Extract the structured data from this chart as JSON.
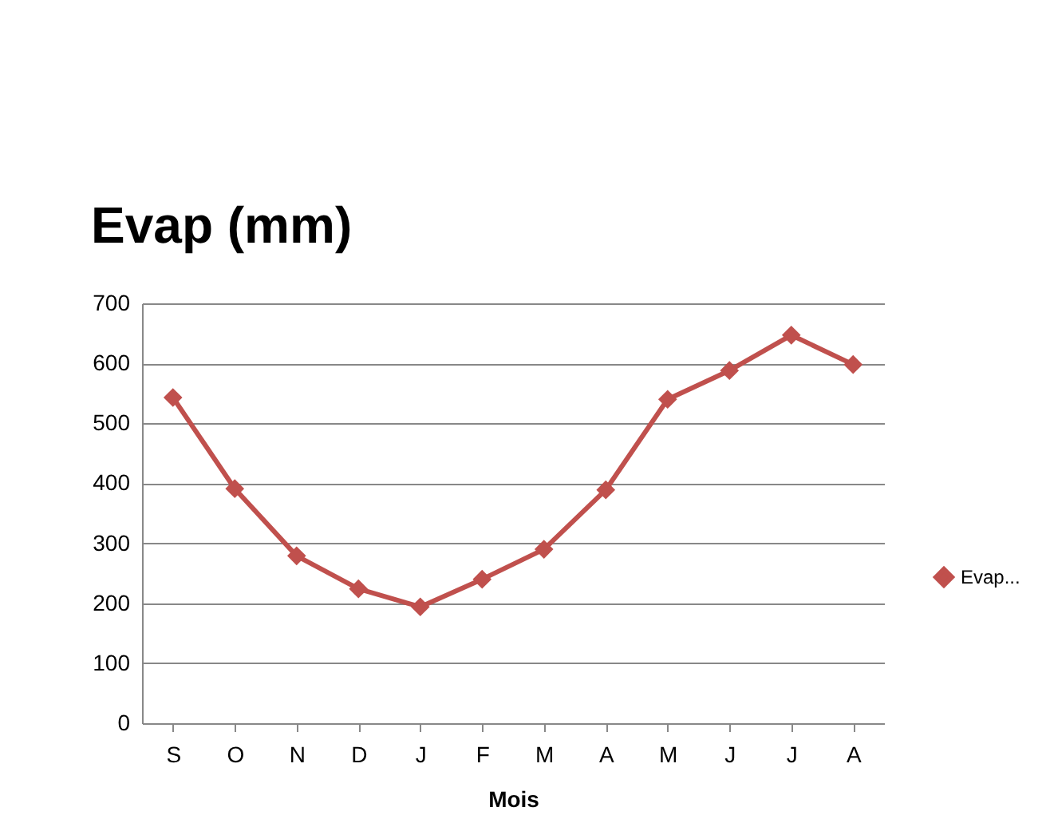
{
  "chart_data": {
    "type": "line",
    "title": "Evap (mm)",
    "xlabel": "Mois",
    "categories": [
      "S",
      "O",
      "N",
      "D",
      "J",
      "F",
      "M",
      "A",
      "M",
      "J",
      "J",
      "A"
    ],
    "series": [
      {
        "name": "Evap...",
        "color": "#c0504d",
        "values": [
          543,
          391,
          279,
          224,
          194,
          240,
          290,
          389,
          540,
          588,
          647,
          598
        ]
      }
    ],
    "ylim": [
      0,
      700
    ],
    "yticks": [
      0,
      100,
      200,
      300,
      400,
      500,
      600,
      700
    ],
    "grid": "y",
    "legend": "right",
    "marker": "diamond",
    "line_style": "solid"
  }
}
